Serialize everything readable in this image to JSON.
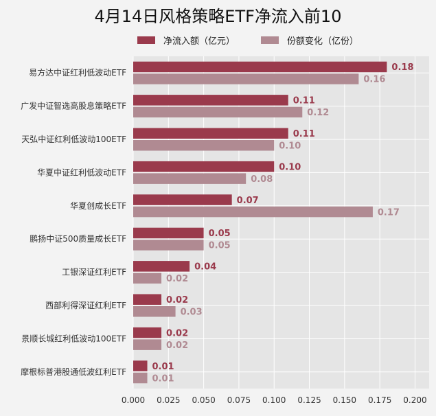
{
  "chart_data": {
    "type": "bar",
    "orientation": "horizontal",
    "title": "4月14日风格策略ETF净流入前10",
    "categories": [
      "易方达中证红利低波动ETF",
      "广发中证智选高股息策略ETF",
      "天弘中证红利低波动100ETF",
      "华夏中证红利低波动ETF",
      "华夏创成长ETF",
      "鹏扬中证500质量成长ETF",
      "工银深证红利ETF",
      "西部利得深证红利ETF",
      "景顺长城红利低波动100ETF",
      "摩根标普港股通低波红利ETF"
    ],
    "series": [
      {
        "name": "净流入额（亿元）",
        "color": "#9a3a4c",
        "values": [
          0.18,
          0.11,
          0.11,
          0.1,
          0.07,
          0.05,
          0.04,
          0.02,
          0.02,
          0.01
        ],
        "labels": [
          "0.18",
          "0.11",
          "0.11",
          "0.10",
          "0.07",
          "0.05",
          "0.04",
          "0.02",
          "0.02",
          "0.01"
        ]
      },
      {
        "name": "份额变化（亿份）",
        "color": "#b08a92",
        "values": [
          0.16,
          0.12,
          0.1,
          0.08,
          0.17,
          0.05,
          0.02,
          0.03,
          0.02,
          0.01
        ],
        "labels": [
          "0.16",
          "0.12",
          "0.10",
          "0.08",
          "0.17",
          "0.05",
          "0.02",
          "0.03",
          "0.02",
          "0.01"
        ]
      }
    ],
    "xlim": [
      0,
      0.21
    ],
    "xticks": [
      0.0,
      0.025,
      0.05,
      0.075,
      0.1,
      0.125,
      0.15,
      0.175,
      0.2
    ],
    "xtick_labels": [
      "0.000",
      "0.025",
      "0.050",
      "0.075",
      "0.100",
      "0.125",
      "0.150",
      "0.175",
      "0.200"
    ],
    "grid": true,
    "legend_position": "top",
    "plot_background": "#e5e5e5",
    "grid_color": "#ffffff"
  }
}
